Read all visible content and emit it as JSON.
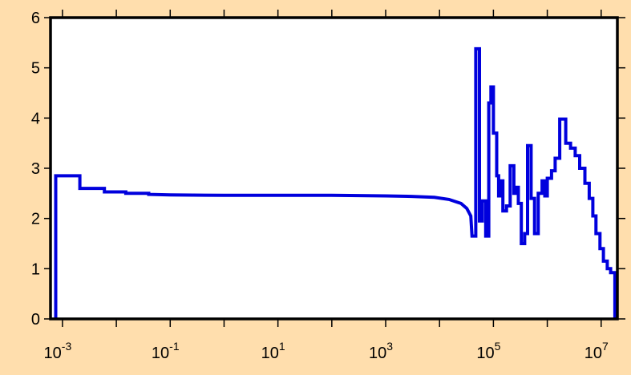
{
  "chart_data": {
    "type": "line",
    "title": "",
    "xlabel": "",
    "ylabel": "",
    "x_scale": "log",
    "xlim": [
      0.0006,
      20000000
    ],
    "ylim": [
      0,
      6
    ],
    "x_ticks": [
      {
        "base": "10",
        "exp": "-3"
      },
      {
        "base": "10",
        "exp": "-1"
      },
      {
        "base": "10",
        "exp": "1"
      },
      {
        "base": "10",
        "exp": "3"
      },
      {
        "base": "10",
        "exp": "5"
      },
      {
        "base": "10",
        "exp": "7"
      }
    ],
    "y_ticks": [
      "0",
      "1",
      "2",
      "3",
      "4",
      "5",
      "6"
    ],
    "grid": false,
    "colors": {
      "background": "#ffdead",
      "plot_area": "#ffffff",
      "line": "#0000dd"
    },
    "series": [
      {
        "style": "step",
        "points": [
          [
            0.00075,
            0
          ],
          [
            0.00075,
            2.85
          ],
          [
            0.0021,
            2.85
          ],
          [
            0.0021,
            2.6
          ],
          [
            0.006,
            2.6
          ],
          [
            0.006,
            2.53
          ],
          [
            0.015,
            2.53
          ],
          [
            0.015,
            2.5
          ],
          [
            0.04,
            2.5
          ],
          [
            0.04,
            2.48
          ],
          [
            0.1,
            2.47
          ],
          [
            1,
            2.46
          ],
          [
            10,
            2.46
          ],
          [
            100,
            2.46
          ],
          [
            1000,
            2.45
          ],
          [
            3000,
            2.44
          ],
          [
            8000,
            2.42
          ],
          [
            15000,
            2.38
          ],
          [
            25000,
            2.3
          ],
          [
            32000,
            2.2
          ],
          [
            38000,
            2.05
          ],
          [
            40000,
            1.65
          ],
          [
            47000,
            1.65
          ],
          [
            47000,
            5.38
          ],
          [
            55000,
            5.38
          ],
          [
            55000,
            1.95
          ],
          [
            62000,
            1.95
          ],
          [
            62000,
            2.35
          ],
          [
            72000,
            2.35
          ],
          [
            72000,
            1.65
          ],
          [
            82000,
            1.65
          ],
          [
            82000,
            4.3
          ],
          [
            90000,
            4.3
          ],
          [
            90000,
            4.62
          ],
          [
            100000,
            4.62
          ],
          [
            100000,
            3.7
          ],
          [
            115000,
            3.7
          ],
          [
            115000,
            2.85
          ],
          [
            125000,
            2.85
          ],
          [
            125000,
            2.45
          ],
          [
            138000,
            2.45
          ],
          [
            138000,
            2.75
          ],
          [
            150000,
            2.75
          ],
          [
            150000,
            2.15
          ],
          [
            175000,
            2.15
          ],
          [
            175000,
            2.25
          ],
          [
            205000,
            2.25
          ],
          [
            205000,
            3.05
          ],
          [
            240000,
            3.05
          ],
          [
            240000,
            2.5
          ],
          [
            260000,
            2.5
          ],
          [
            260000,
            2.62
          ],
          [
            290000,
            2.62
          ],
          [
            290000,
            2.3
          ],
          [
            330000,
            2.3
          ],
          [
            330000,
            1.5
          ],
          [
            380000,
            1.5
          ],
          [
            380000,
            1.7
          ],
          [
            430000,
            1.7
          ],
          [
            430000,
            3.45
          ],
          [
            500000,
            3.45
          ],
          [
            500000,
            2.4
          ],
          [
            580000,
            2.4
          ],
          [
            580000,
            1.7
          ],
          [
            680000,
            1.7
          ],
          [
            680000,
            2.5
          ],
          [
            800000,
            2.5
          ],
          [
            800000,
            2.75
          ],
          [
            900000,
            2.75
          ],
          [
            900000,
            2.45
          ],
          [
            1000000,
            2.45
          ],
          [
            1000000,
            2.8
          ],
          [
            1200000,
            2.8
          ],
          [
            1200000,
            2.95
          ],
          [
            1400000,
            2.95
          ],
          [
            1400000,
            3.2
          ],
          [
            1700000,
            3.2
          ],
          [
            1700000,
            3.98
          ],
          [
            2200000,
            3.98
          ],
          [
            2200000,
            3.5
          ],
          [
            2700000,
            3.5
          ],
          [
            2700000,
            3.4
          ],
          [
            3300000,
            3.4
          ],
          [
            3300000,
            3.25
          ],
          [
            4000000,
            3.25
          ],
          [
            4000000,
            3.0
          ],
          [
            5000000,
            3.0
          ],
          [
            5000000,
            2.7
          ],
          [
            6000000,
            2.7
          ],
          [
            6000000,
            2.4
          ],
          [
            7000000,
            2.4
          ],
          [
            7000000,
            2.05
          ],
          [
            8000000,
            2.05
          ],
          [
            8000000,
            1.7
          ],
          [
            9500000,
            1.7
          ],
          [
            9500000,
            1.4
          ],
          [
            11000000,
            1.4
          ],
          [
            11000000,
            1.15
          ],
          [
            13000000,
            1.15
          ],
          [
            13000000,
            1.0
          ],
          [
            15000000,
            1.0
          ],
          [
            15000000,
            0.92
          ],
          [
            18000000,
            0.92
          ],
          [
            18000000,
            0
          ]
        ]
      }
    ]
  }
}
